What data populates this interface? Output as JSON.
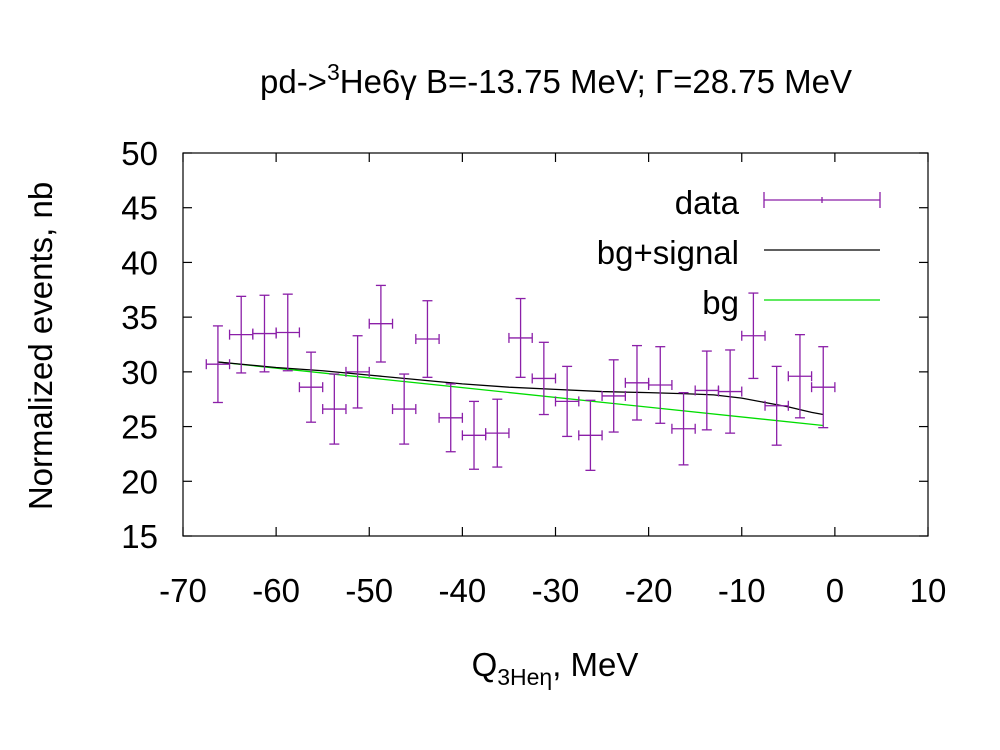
{
  "chart_data": {
    "type": "scatter",
    "title": {
      "prefix": "pd->",
      "sup": "3",
      "suffix": "He6γ B=-13.75 MeV; Γ=28.75 MeV"
    },
    "xlabel": {
      "main": "Q",
      "sub": "3Heη",
      "suffix": ", MeV"
    },
    "ylabel": "Normalized events, nb",
    "xlim": [
      -70,
      10
    ],
    "ylim": [
      15,
      50
    ],
    "xticks": [
      "-70",
      "-60",
      "-50",
      "-40",
      "-30",
      "-20",
      "-10",
      "0",
      "10"
    ],
    "yticks": [
      "15",
      "20",
      "25",
      "30",
      "35",
      "40",
      "45",
      "50"
    ],
    "legend": {
      "position": "top-right",
      "entries": [
        "data",
        "bg+signal",
        "bg"
      ]
    },
    "colors": {
      "data": "#8b1fa8",
      "signal": "#000000",
      "bg": "#00dd00"
    },
    "series": [
      {
        "name": "data",
        "kind": "errorbars",
        "points": [
          {
            "x": -66.25,
            "y": 30.7,
            "yerr": 3.5,
            "xerr": 1.25
          },
          {
            "x": -63.75,
            "y": 33.4,
            "yerr": 3.5,
            "xerr": 1.25
          },
          {
            "x": -61.25,
            "y": 33.5,
            "yerr": 3.5,
            "xerr": 1.25
          },
          {
            "x": -58.75,
            "y": 33.6,
            "yerr": 3.5,
            "xerr": 1.25
          },
          {
            "x": -56.25,
            "y": 28.6,
            "yerr": 3.2,
            "xerr": 1.25
          },
          {
            "x": -53.75,
            "y": 26.6,
            "yerr": 3.2,
            "xerr": 1.25
          },
          {
            "x": -51.25,
            "y": 30.0,
            "yerr": 3.3,
            "xerr": 1.25
          },
          {
            "x": -48.75,
            "y": 34.4,
            "yerr": 3.5,
            "xerr": 1.25
          },
          {
            "x": -46.25,
            "y": 26.6,
            "yerr": 3.2,
            "xerr": 1.25
          },
          {
            "x": -43.75,
            "y": 33.0,
            "yerr": 3.5,
            "xerr": 1.25
          },
          {
            "x": -41.25,
            "y": 25.8,
            "yerr": 3.1,
            "xerr": 1.25
          },
          {
            "x": -38.75,
            "y": 24.2,
            "yerr": 3.1,
            "xerr": 1.25
          },
          {
            "x": -36.25,
            "y": 24.4,
            "yerr": 3.1,
            "xerr": 1.25
          },
          {
            "x": -33.75,
            "y": 33.1,
            "yerr": 3.6,
            "xerr": 1.25
          },
          {
            "x": -31.25,
            "y": 29.4,
            "yerr": 3.3,
            "xerr": 1.25
          },
          {
            "x": -28.75,
            "y": 27.3,
            "yerr": 3.2,
            "xerr": 1.25
          },
          {
            "x": -26.25,
            "y": 24.2,
            "yerr": 3.2,
            "xerr": 1.25
          },
          {
            "x": -23.75,
            "y": 27.8,
            "yerr": 3.3,
            "xerr": 1.25
          },
          {
            "x": -21.25,
            "y": 29.0,
            "yerr": 3.4,
            "xerr": 1.25
          },
          {
            "x": -18.75,
            "y": 28.8,
            "yerr": 3.5,
            "xerr": 1.25
          },
          {
            "x": -16.25,
            "y": 24.8,
            "yerr": 3.3,
            "xerr": 1.25
          },
          {
            "x": -13.75,
            "y": 28.3,
            "yerr": 3.6,
            "xerr": 1.25
          },
          {
            "x": -11.25,
            "y": 28.2,
            "yerr": 3.8,
            "xerr": 1.25
          },
          {
            "x": -8.75,
            "y": 33.3,
            "yerr": 3.9,
            "xerr": 1.25
          },
          {
            "x": -6.25,
            "y": 26.9,
            "yerr": 3.6,
            "xerr": 1.25
          },
          {
            "x": -3.75,
            "y": 29.6,
            "yerr": 3.8,
            "xerr": 1.25
          },
          {
            "x": -1.25,
            "y": 28.6,
            "yerr": 3.7,
            "xerr": 1.25
          }
        ]
      },
      {
        "name": "bg+signal",
        "kind": "line",
        "x": [
          -66.25,
          -60,
          -55,
          -50,
          -45,
          -40,
          -35,
          -30,
          -25,
          -20,
          -16,
          -13,
          -10,
          -7.5,
          -5,
          -2.5,
          -1.25
        ],
        "y": [
          30.9,
          30.4,
          30.1,
          29.7,
          29.3,
          28.9,
          28.6,
          28.4,
          28.2,
          28.1,
          28.0,
          27.9,
          27.6,
          27.2,
          26.8,
          26.3,
          26.1
        ]
      },
      {
        "name": "bg",
        "kind": "line",
        "x": [
          -66.25,
          -1.25
        ],
        "y": [
          30.9,
          25.1
        ]
      }
    ]
  }
}
